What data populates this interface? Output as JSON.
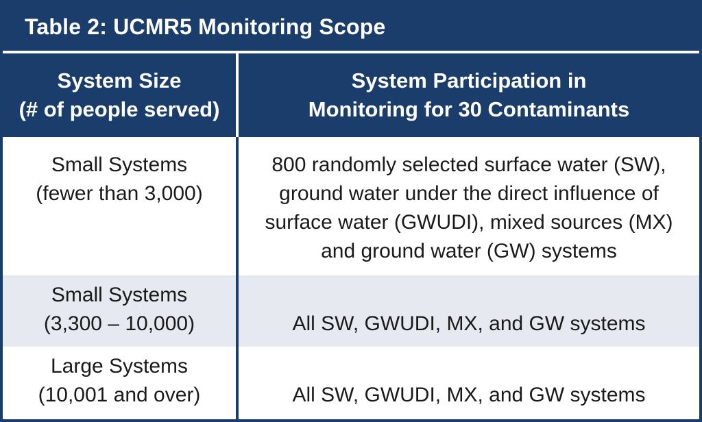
{
  "title": "Table 2: UCMR5 Monitoring Scope",
  "colors": {
    "header_bg": "#1b3d6b",
    "alt_row_bg": "#e6e9ef",
    "text": "#1a1a1a"
  },
  "columns": [
    {
      "line1": "System Size",
      "line2": "(# of people served)"
    },
    {
      "line1": "System Participation in",
      "line2": "Monitoring for 30 Contaminants"
    }
  ],
  "rows": [
    {
      "size_line1": "Small Systems",
      "size_line2": "(fewer than 3,000)",
      "participation_lines": [
        "800 randomly selected surface water (SW),",
        "ground water under the direct influence of",
        "surface water (GWUDI), mixed sources (MX)",
        "and ground water (GW) systems"
      ]
    },
    {
      "size_line1": "Small Systems",
      "size_line2": "(3,300 – 10,000)",
      "participation_lines": [
        "All SW, GWUDI, MX, and GW systems"
      ]
    },
    {
      "size_line1": "Large Systems",
      "size_line2": "(10,001 and over)",
      "participation_lines": [
        "All SW, GWUDI, MX, and GW systems"
      ]
    }
  ]
}
